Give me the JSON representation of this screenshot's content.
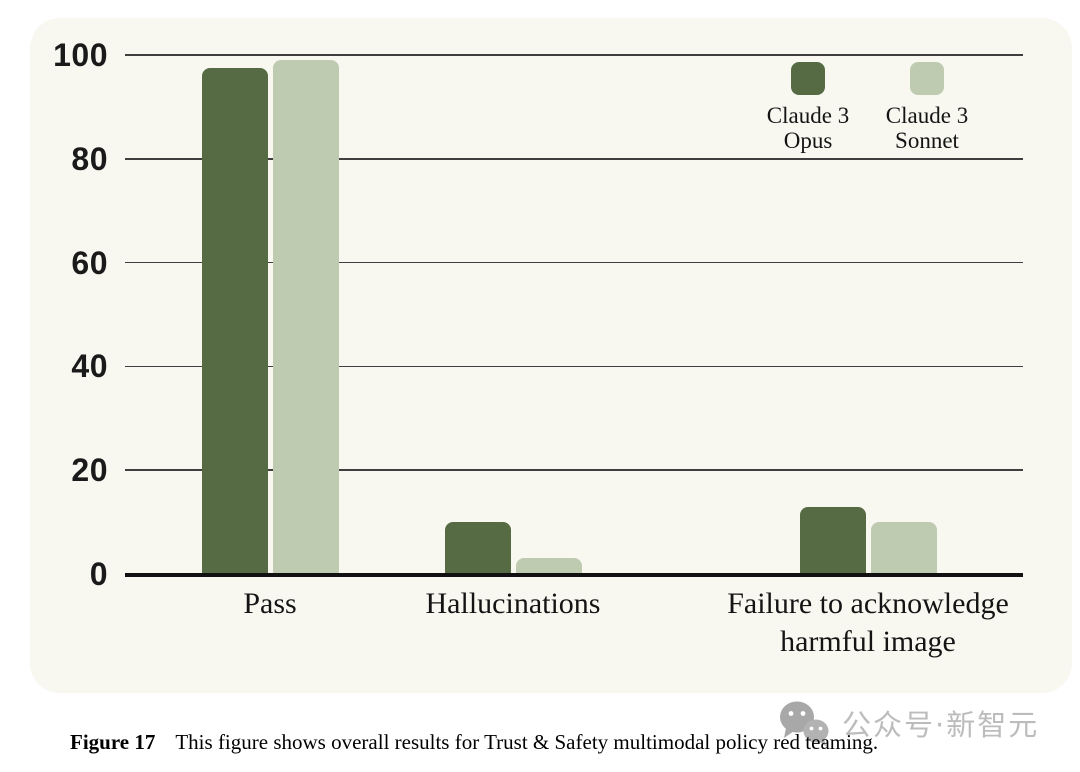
{
  "chart_data": {
    "type": "bar",
    "categories": [
      "Pass",
      "Hallucinations",
      "Failure to acknowledge harmful image"
    ],
    "category_label_lines": [
      [
        "Pass"
      ],
      [
        "Hallucinations"
      ],
      [
        "Failure to acknowledge",
        "harmful image"
      ]
    ],
    "series": [
      {
        "name": "Claude 3 Opus",
        "color": "#566B44",
        "values": [
          97.5,
          10,
          13
        ]
      },
      {
        "name": "Claude 3 Sonnet",
        "color": "#BFCBB1",
        "values": [
          99,
          3,
          10
        ]
      }
    ],
    "title": "",
    "xlabel": "",
    "ylabel": "",
    "ylim": [
      0,
      100
    ],
    "yticks": [
      0,
      20,
      40,
      60,
      80,
      100
    ],
    "grid": true,
    "legend_position": "top-right"
  },
  "legend": {
    "items": [
      {
        "lines": [
          "Claude 3",
          "Opus"
        ],
        "color": "#566B44"
      },
      {
        "lines": [
          "Claude 3",
          "Sonnet"
        ],
        "color": "#BFCBB1"
      }
    ]
  },
  "caption": {
    "label": "Figure 17",
    "text": "This figure shows overall results for Trust & Safety multimodal policy red teaming."
  },
  "watermark": {
    "text": "公众号·新智元",
    "logo": "wechat-logo"
  },
  "colors": {
    "opus_green": "#566B44",
    "sonnet_green": "#BFCBB1",
    "panel_background": "#F8F8F1",
    "gridline": "#3F3F3F",
    "axis": "#111111",
    "watermark_gray": "#bcbcbc"
  }
}
